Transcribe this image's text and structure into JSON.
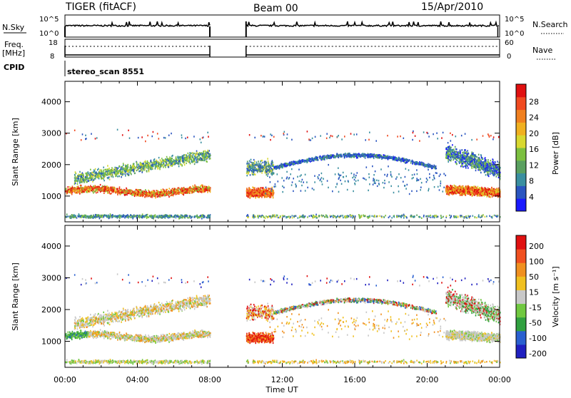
{
  "header": {
    "station": "TIGER (fitACF)",
    "beam": "Beam 00",
    "date": "15/Apr/2010"
  },
  "nsky_panel": {
    "left_label": "N.Sky",
    "left_ticks": [
      "10^5",
      "10^0"
    ],
    "right_ticks": [
      "10^5",
      "10^0"
    ],
    "right_label": "N.Search"
  },
  "freq_panel": {
    "left_label_1": "Freq.",
    "left_label_2": "[MHz]",
    "left_ticks": [
      "18",
      "8"
    ],
    "right_ticks": [
      "60",
      "0"
    ],
    "right_label": "Nave"
  },
  "cpid": {
    "label": "CPID",
    "value": "stereo_scan 8551"
  },
  "chart_data": [
    {
      "type": "heatmap",
      "name": "Power",
      "ylabel": "Slant Range [km]",
      "xlabel": "",
      "ylim": [
        180,
        4650
      ],
      "y_ticks": [
        1000,
        2000,
        3000,
        4000
      ],
      "colorbar": {
        "label": "Power [dB]",
        "ticks": [
          "4",
          "8",
          "12",
          "16",
          "20",
          "24",
          "28"
        ],
        "colors": [
          "#1a1aff",
          "#2a55c0",
          "#3a8fa0",
          "#5aa060",
          "#7cc040",
          "#d8d830",
          "#f0b020",
          "#f08020",
          "#f04a20",
          "#e01010"
        ]
      },
      "data_gap_hours": [
        8.0,
        10.0
      ]
    },
    {
      "type": "heatmap",
      "name": "Velocity",
      "ylabel": "Slant Range [km]",
      "xlabel": "Time UT",
      "ylim": [
        180,
        4650
      ],
      "y_ticks": [
        1000,
        2000,
        3000,
        4000
      ],
      "colorbar": {
        "label": "Velocity [m s⁻¹]",
        "ticks": [
          "200",
          "100",
          "50",
          "15",
          "-15",
          "-50",
          "-100",
          "-200"
        ],
        "colors": [
          "#2020c0",
          "#2a60d0",
          "#30a040",
          "#70c840",
          "#c8c8c8",
          "#f0c020",
          "#f09020",
          "#f05020",
          "#e01010"
        ]
      },
      "data_gap_hours": [
        8.0,
        10.0
      ]
    }
  ],
  "x_axis": {
    "label": "Time UT",
    "range_hours": [
      0,
      24
    ],
    "ticks": [
      "00:00",
      "04:00",
      "08:00",
      "12:00",
      "16:00",
      "20:00",
      "00:00"
    ]
  }
}
